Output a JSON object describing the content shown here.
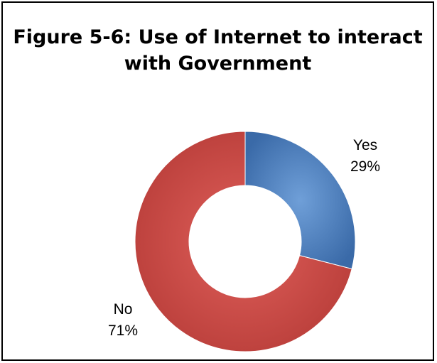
{
  "chart_data": {
    "type": "pie",
    "variant": "doughnut",
    "title": "Figure 5-6: Use of Internet to interact with Government",
    "categories": [
      "Yes",
      "No"
    ],
    "values": [
      29,
      71
    ],
    "unit": "%",
    "colors": [
      "#4f81bd",
      "#c0504d"
    ],
    "slice_labels": [
      {
        "name": "Yes",
        "value_text": "29%"
      },
      {
        "name": "No",
        "value_text": "71%"
      }
    ],
    "legend": "none"
  }
}
